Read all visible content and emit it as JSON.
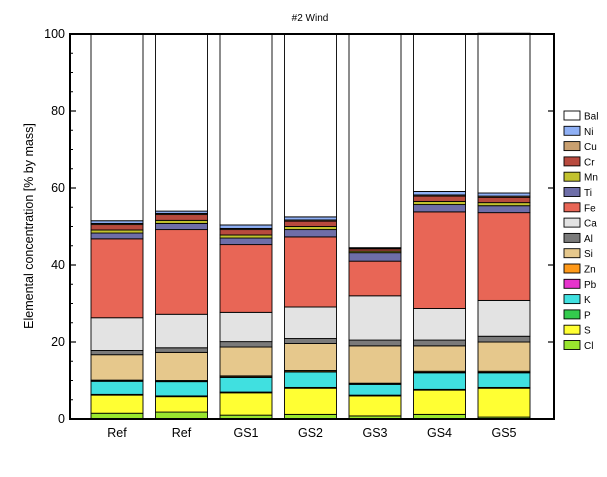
{
  "chart_data": {
    "type": "bar",
    "stacked": true,
    "title": "#2 Wind",
    "xlabel": "",
    "ylabel": "Elemental concentration [% by mass]",
    "ylim": [
      0,
      100
    ],
    "yticks": [
      0,
      20,
      40,
      60,
      80,
      100
    ],
    "categories": [
      "Ref",
      "Ref",
      "GS1",
      "GS2",
      "GS3",
      "GS4",
      "GS5"
    ],
    "legend_position": "right",
    "series": [
      {
        "name": "Cl",
        "color": "#99e62e",
        "values": [
          1.5,
          1.8,
          1.0,
          1.2,
          0.8,
          1.2,
          0.5
        ]
      },
      {
        "name": "S",
        "color": "#ffff33",
        "values": [
          4.7,
          4.0,
          5.8,
          6.8,
          5.2,
          6.3,
          7.5
        ]
      },
      {
        "name": "P",
        "color": "#33cc4d",
        "values": [
          0.2,
          0.2,
          0.2,
          0.2,
          0.2,
          0.2,
          0.2
        ]
      },
      {
        "name": "K",
        "color": "#40e0e0",
        "values": [
          3.4,
          3.7,
          3.8,
          4.0,
          2.8,
          4.3,
          3.8
        ]
      },
      {
        "name": "Pb",
        "color": "#e633cc",
        "values": [
          0.1,
          0.1,
          0.1,
          0.1,
          0.1,
          0.1,
          0.1
        ]
      },
      {
        "name": "Zn",
        "color": "#ff9919",
        "values": [
          0.2,
          0.2,
          0.3,
          0.3,
          0.2,
          0.3,
          0.3
        ]
      },
      {
        "name": "Si",
        "color": "#e6c88c",
        "values": [
          6.6,
          7.3,
          7.5,
          7.0,
          9.7,
          6.6,
          7.6
        ]
      },
      {
        "name": "Al",
        "color": "#7a7a7a",
        "values": [
          1.1,
          1.2,
          1.4,
          1.3,
          1.5,
          1.5,
          1.5
        ]
      },
      {
        "name": "Ca",
        "color": "#e3e3e3",
        "values": [
          8.5,
          8.7,
          7.6,
          8.2,
          11.5,
          8.2,
          9.3
        ]
      },
      {
        "name": "Fe",
        "color": "#e86656",
        "values": [
          20.5,
          22.0,
          17.6,
          18.2,
          9.0,
          25.1,
          22.8
        ]
      },
      {
        "name": "Ti",
        "color": "#6e6ea8",
        "values": [
          1.5,
          1.6,
          1.7,
          1.9,
          2.2,
          1.9,
          1.8
        ]
      },
      {
        "name": "Mn",
        "color": "#c2c22e",
        "values": [
          0.8,
          0.8,
          0.8,
          0.8,
          0.4,
          0.8,
          0.8
        ]
      },
      {
        "name": "Cr",
        "color": "#b84a3e",
        "values": [
          1.4,
          1.5,
          1.4,
          1.4,
          0.6,
          1.4,
          1.4
        ]
      },
      {
        "name": "Cu",
        "color": "#c9a070",
        "values": [
          0.3,
          0.3,
          0.3,
          0.3,
          0.2,
          0.3,
          0.3
        ]
      },
      {
        "name": "Ni",
        "color": "#8fb0f5",
        "values": [
          0.7,
          0.6,
          0.9,
          0.8,
          0.1,
          0.9,
          0.8
        ]
      },
      {
        "name": "Bal",
        "color": "#ffffff",
        "values": [
          48.5,
          46.0,
          49.6,
          47.5,
          55.5,
          40.9,
          41.5
        ]
      }
    ]
  }
}
